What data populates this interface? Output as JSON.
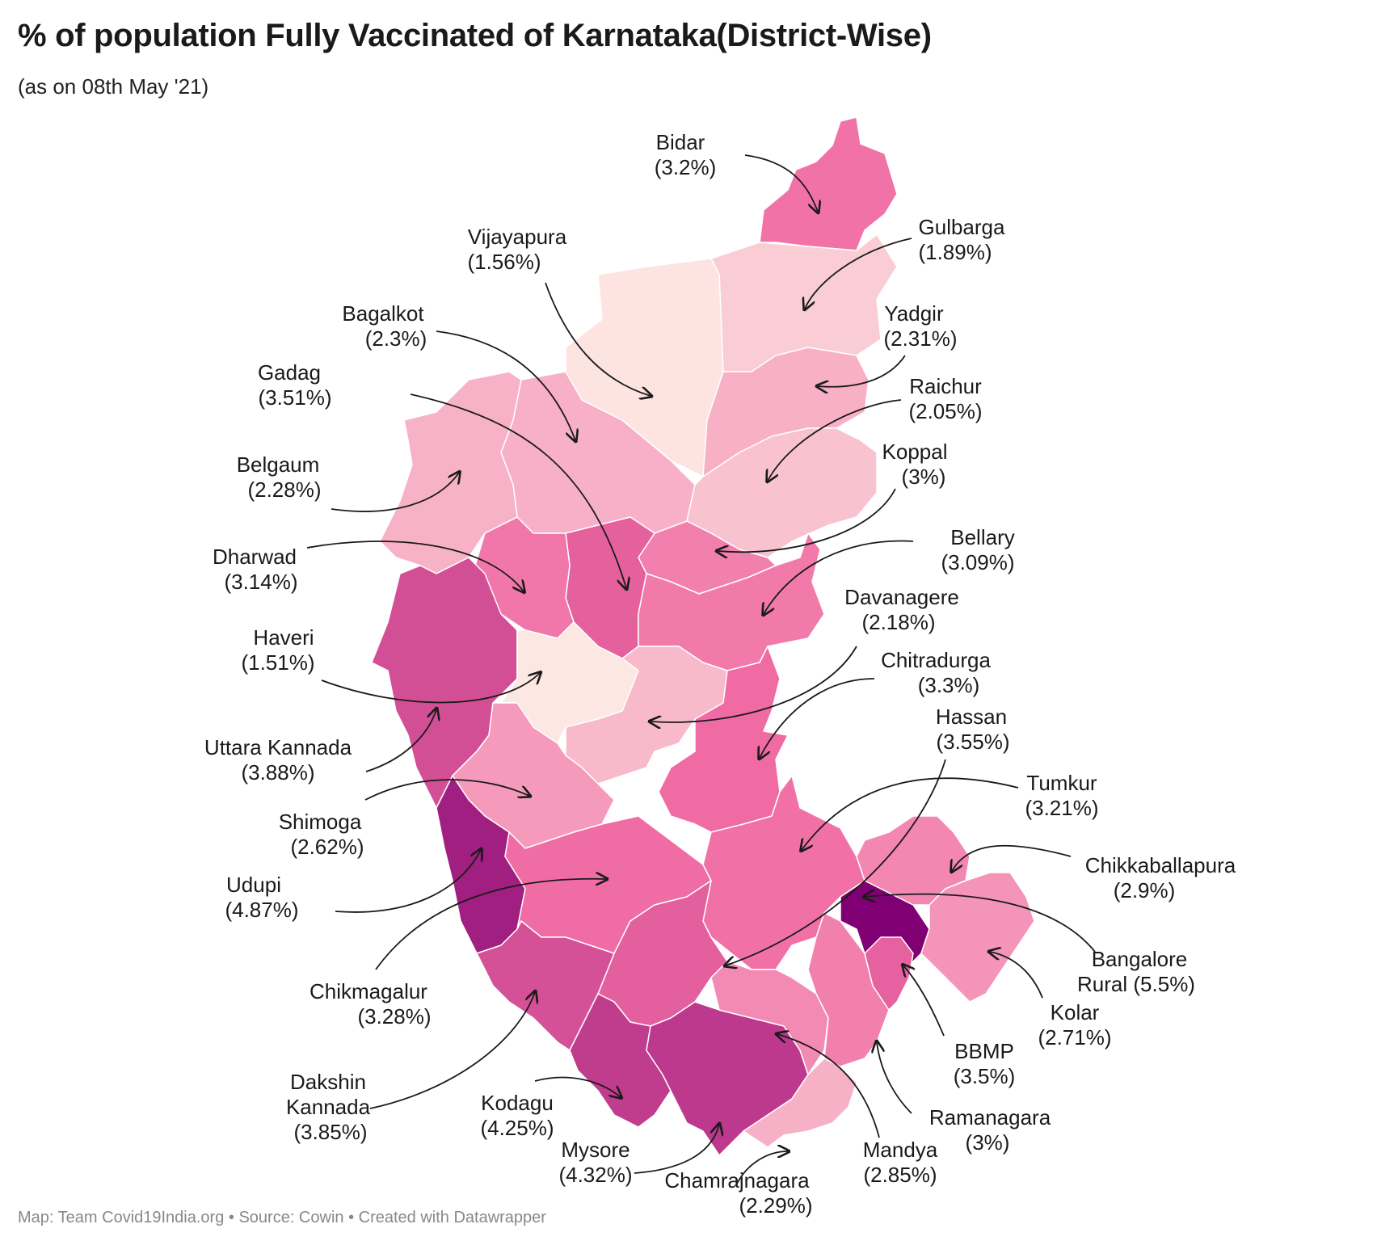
{
  "title": "% of population Fully Vaccinated of Karnataka(District-Wise)",
  "subtitle": "(as on 08th May '21)",
  "footer": "Map: Team Covid19India.org • Source: Cowin • Created with Datawrapper",
  "color_scale": {
    "low": "#fde8e3",
    "mid": "#f06ba3",
    "high": "#800073"
  },
  "districts": [
    {
      "id": "bidar",
      "name": "Bidar",
      "value_text": "(3.2%)",
      "value": 3.2
    },
    {
      "id": "gulbarga",
      "name": "Gulbarga",
      "value_text": "(1.89%)",
      "value": 1.89
    },
    {
      "id": "vijayapura",
      "name": "Vijayapura",
      "value_text": "(1.56%)",
      "value": 1.56
    },
    {
      "id": "yadgir",
      "name": "Yadgir",
      "value_text": "(2.31%)",
      "value": 2.31
    },
    {
      "id": "bagalkot",
      "name": "Bagalkot",
      "value_text": "(2.3%)",
      "value": 2.3
    },
    {
      "id": "raichur",
      "name": "Raichur",
      "value_text": "(2.05%)",
      "value": 2.05
    },
    {
      "id": "gadag",
      "name": "Gadag",
      "value_text": "(3.51%)",
      "value": 3.51
    },
    {
      "id": "koppal",
      "name": "Koppal",
      "value_text": "(3%)",
      "value": 3
    },
    {
      "id": "belgaum",
      "name": "Belgaum",
      "value_text": "(2.28%)",
      "value": 2.28
    },
    {
      "id": "bellary",
      "name": "Bellary",
      "value_text": "(3.09%)",
      "value": 3.09
    },
    {
      "id": "dharwad",
      "name": "Dharwad",
      "value_text": "(3.14%)",
      "value": 3.14
    },
    {
      "id": "davanagere",
      "name": "Davanagere",
      "value_text": "(2.18%)",
      "value": 2.18
    },
    {
      "id": "haveri",
      "name": "Haveri",
      "value_text": "(1.51%)",
      "value": 1.51
    },
    {
      "id": "chitradurga",
      "name": "Chitradurga",
      "value_text": "(3.3%)",
      "value": 3.3
    },
    {
      "id": "uttara-kannada",
      "name": "Uttara Kannada",
      "value_text": "(3.88%)",
      "value": 3.88
    },
    {
      "id": "hassan",
      "name": "Hassan",
      "value_text": "(3.55%)",
      "value": 3.55
    },
    {
      "id": "shimoga",
      "name": "Shimoga",
      "value_text": "(2.62%)",
      "value": 2.62
    },
    {
      "id": "tumkur",
      "name": "Tumkur",
      "value_text": "(3.21%)",
      "value": 3.21
    },
    {
      "id": "udupi",
      "name": "Udupi",
      "value_text": "(4.87%)",
      "value": 4.87
    },
    {
      "id": "chikkaballapura",
      "name": "Chikkaballapura",
      "value_text": "(2.9%)",
      "value": 2.9
    },
    {
      "id": "chikmagalur",
      "name": "Chikmagalur",
      "value_text": "(3.28%)",
      "value": 3.28
    },
    {
      "id": "bangalore-rural",
      "name": "Bangalore",
      "name2": "Rural (5.5%)",
      "value": 5.5
    },
    {
      "id": "kolar",
      "name": "Kolar",
      "value_text": "(2.71%)",
      "value": 2.71
    },
    {
      "id": "dakshin-kannada",
      "name": "Dakshin",
      "name2": "Kannada",
      "value_text": "(3.85%)",
      "value": 3.85
    },
    {
      "id": "bbmp",
      "name": "BBMP",
      "value_text": "(3.5%)",
      "value": 3.5
    },
    {
      "id": "kodagu",
      "name": "Kodagu",
      "value_text": "(4.25%)",
      "value": 4.25
    },
    {
      "id": "ramanagara",
      "name": "Ramanagara",
      "value_text": "(3%)",
      "value": 3
    },
    {
      "id": "mysore",
      "name": "Mysore",
      "value_text": "(4.32%)",
      "value": 4.32
    },
    {
      "id": "mandya",
      "name": "Mandya",
      "value_text": "(2.85%)",
      "value": 2.85
    },
    {
      "id": "chamrajnagara",
      "name": "Chamrajnagara",
      "value_text": "(2.29%)",
      "value": 2.29
    }
  ]
}
